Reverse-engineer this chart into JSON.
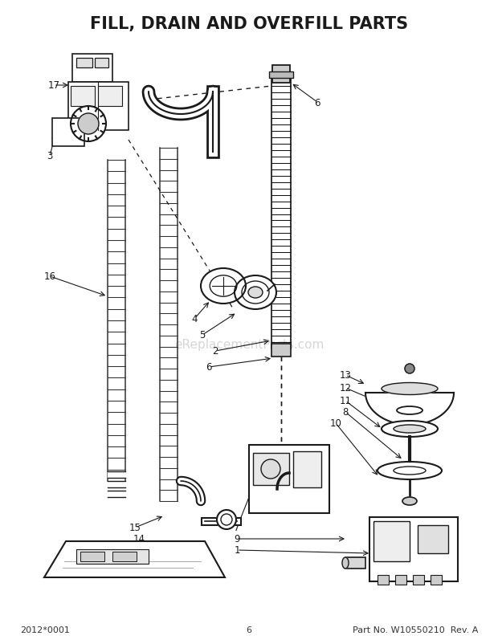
{
  "title": "FILL, DRAIN AND OVERFILL PARTS",
  "title_fontsize": 15,
  "title_fontweight": "bold",
  "background_color": "#ffffff",
  "footer_left": "2012*0001",
  "footer_center": "6",
  "footer_right": "Part No. W10550210  Rev. A",
  "footer_fontsize": 8,
  "watermark": "eReplacementParts.com",
  "watermark_color": "#bbbbbb",
  "watermark_fontsize": 11,
  "fig_width": 6.2,
  "fig_height": 8.03,
  "dpi": 100,
  "line_color": "#1a1a1a",
  "label_fontsize": 8.5
}
